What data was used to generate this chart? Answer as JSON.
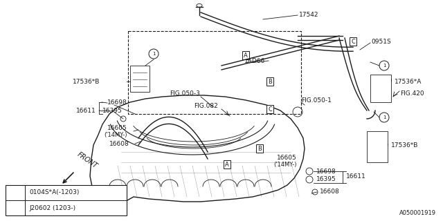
{
  "bg_color": "#ffffff",
  "line_color": "#1a1a1a",
  "watermark": "A050001919",
  "legend_rows": [
    "0104S*A(-1203)",
    "J20602 (1203-)"
  ]
}
